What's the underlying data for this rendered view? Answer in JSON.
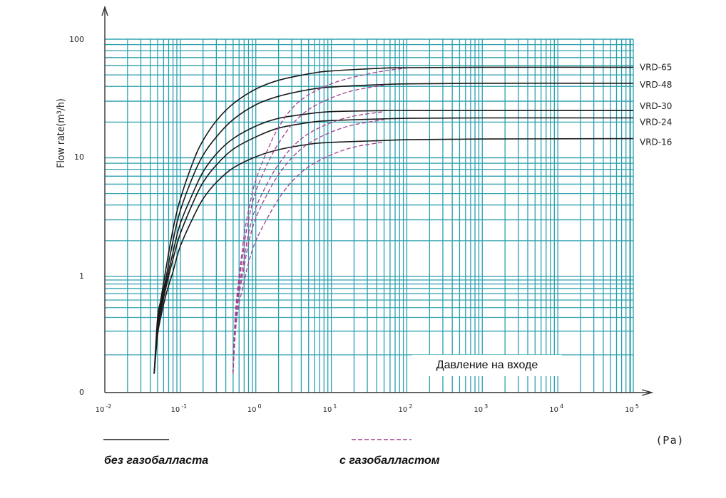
{
  "chart_data": {
    "type": "line",
    "xlabel": "Давление на входе",
    "ylabel": "Flow rate(m³/h)",
    "x_unit": "(Pa)",
    "x_scale": "log",
    "y_scale": "log",
    "xlim": [
      0.01,
      100000
    ],
    "x_ticks": [
      {
        "value": 0.01,
        "base": "10",
        "exp": "-2"
      },
      {
        "value": 0.1,
        "base": "10",
        "exp": "-1"
      },
      {
        "value": 1,
        "base": "10",
        "exp": "0"
      },
      {
        "value": 10,
        "base": "10",
        "exp": "1"
      },
      {
        "value": 100,
        "base": "10",
        "exp": "2"
      },
      {
        "value": 1000,
        "base": "10",
        "exp": "3"
      },
      {
        "value": 10000,
        "base": "10",
        "exp": "4"
      },
      {
        "value": 100000,
        "base": "10",
        "exp": "5"
      }
    ],
    "y_ticks": [
      "0",
      "1",
      "10",
      "100"
    ],
    "grid": true,
    "grid_color": "#2a9fae",
    "series": [
      {
        "name": "VRD-65",
        "style": "solid",
        "color": "#1a1a1a",
        "x": [
          0.045,
          0.05,
          0.055,
          0.065,
          0.08,
          0.1,
          0.15,
          0.2,
          0.3,
          0.5,
          1,
          2,
          5,
          10,
          50,
          100,
          1000,
          100000
        ],
        "y": [
          0.05,
          0.3,
          0.5,
          1.2,
          2.5,
          4.5,
          9.5,
          14,
          20.5,
          28.5,
          38,
          45,
          51,
          54,
          57,
          57.5,
          58,
          58
        ]
      },
      {
        "name": "VRD-48",
        "style": "solid",
        "color": "#1a1a1a",
        "x": [
          0.045,
          0.05,
          0.055,
          0.065,
          0.08,
          0.1,
          0.15,
          0.2,
          0.3,
          0.5,
          1,
          2,
          5,
          10,
          50,
          100,
          1000,
          100000
        ],
        "y": [
          0.05,
          0.25,
          0.45,
          1.0,
          2.0,
          3.6,
          7.2,
          10.5,
          15,
          21,
          28,
          33,
          37.5,
          39.5,
          41.5,
          42,
          42.5,
          42.5
        ]
      },
      {
        "name": "VRD-30",
        "style": "solid",
        "color": "#1a1a1a",
        "x": [
          0.045,
          0.05,
          0.055,
          0.065,
          0.08,
          0.1,
          0.15,
          0.2,
          0.3,
          0.5,
          1,
          2,
          5,
          10,
          50,
          100,
          1000,
          100000
        ],
        "y": [
          0.05,
          0.22,
          0.4,
          0.85,
          1.6,
          2.8,
          5.2,
          7.6,
          10.8,
          14.5,
          18.5,
          21.5,
          23.5,
          24.5,
          25,
          25,
          25,
          25
        ]
      },
      {
        "name": "VRD-24",
        "style": "solid",
        "color": "#1a1a1a",
        "x": [
          0.045,
          0.05,
          0.055,
          0.065,
          0.08,
          0.1,
          0.15,
          0.2,
          0.3,
          0.5,
          1,
          2,
          5,
          10,
          50,
          100,
          1000,
          100000
        ],
        "y": [
          0.05,
          0.2,
          0.35,
          0.75,
          1.4,
          2.3,
          4.3,
          6.2,
          8.7,
          11.8,
          15,
          17.8,
          19.8,
          20.6,
          21.3,
          21.5,
          21.7,
          21.7
        ]
      },
      {
        "name": "VRD-16",
        "style": "solid",
        "color": "#1a1a1a",
        "x": [
          0.045,
          0.05,
          0.055,
          0.065,
          0.08,
          0.1,
          0.15,
          0.2,
          0.3,
          0.5,
          1,
          2,
          5,
          10,
          50,
          100,
          1000,
          100000
        ],
        "y": [
          0.05,
          0.18,
          0.3,
          0.6,
          1.1,
          1.8,
          3.2,
          4.5,
          6.2,
          8.2,
          10.2,
          11.7,
          13,
          13.5,
          14,
          14.2,
          14.4,
          14.5
        ]
      },
      {
        "name": "VRD-65",
        "style": "dashed",
        "color": "#a2408d",
        "x": [
          0.5,
          0.52,
          0.55,
          0.6,
          0.7,
          0.8,
          1,
          1.5,
          2,
          3,
          5,
          10,
          20,
          50,
          100
        ],
        "y": [
          0.05,
          0.2,
          0.45,
          1.0,
          2.2,
          3.6,
          6.5,
          12.5,
          18,
          26,
          34,
          42,
          48,
          54,
          57
        ]
      },
      {
        "name": "VRD-48",
        "style": "dashed",
        "color": "#a2408d",
        "x": [
          0.5,
          0.52,
          0.55,
          0.6,
          0.7,
          0.8,
          1,
          1.5,
          2,
          3,
          5,
          10,
          20,
          50
        ],
        "y": [
          0.05,
          0.18,
          0.4,
          0.85,
          1.8,
          3.0,
          5.2,
          9.5,
          13.2,
          19,
          25.5,
          32,
          37,
          41
        ]
      },
      {
        "name": "VRD-30",
        "style": "dashed",
        "color": "#a2408d",
        "x": [
          0.5,
          0.52,
          0.55,
          0.6,
          0.7,
          0.8,
          1,
          1.5,
          2,
          3,
          5,
          10,
          20,
          50
        ],
        "y": [
          0.05,
          0.15,
          0.35,
          0.7,
          1.4,
          2.3,
          3.8,
          6.5,
          8.8,
          12.2,
          16,
          19.8,
          22.5,
          24.5
        ]
      },
      {
        "name": "VRD-24",
        "style": "dashed",
        "color": "#a2408d",
        "x": [
          0.5,
          0.52,
          0.55,
          0.6,
          0.7,
          0.8,
          1,
          1.5,
          2,
          3,
          5,
          10,
          20,
          50
        ],
        "y": [
          0.05,
          0.14,
          0.3,
          0.6,
          1.2,
          1.9,
          3.1,
          5.3,
          7.2,
          10,
          13.2,
          16.5,
          19,
          21
        ]
      },
      {
        "name": "VRD-16",
        "style": "dashed",
        "color": "#a2408d",
        "x": [
          0.5,
          0.52,
          0.55,
          0.6,
          0.7,
          0.8,
          1,
          1.5,
          2,
          3,
          5,
          10,
          20,
          50
        ],
        "y": [
          0.05,
          0.12,
          0.25,
          0.45,
          0.85,
          1.3,
          2.0,
          3.3,
          4.5,
          6.3,
          8.4,
          10.6,
          12.3,
          13.6
        ]
      }
    ],
    "legend": [
      {
        "label": "без газобалласта",
        "style": "solid",
        "color": "#1a1a1a"
      },
      {
        "label": "с газобалластом",
        "style": "dashed",
        "color": "#a2408d"
      }
    ]
  }
}
